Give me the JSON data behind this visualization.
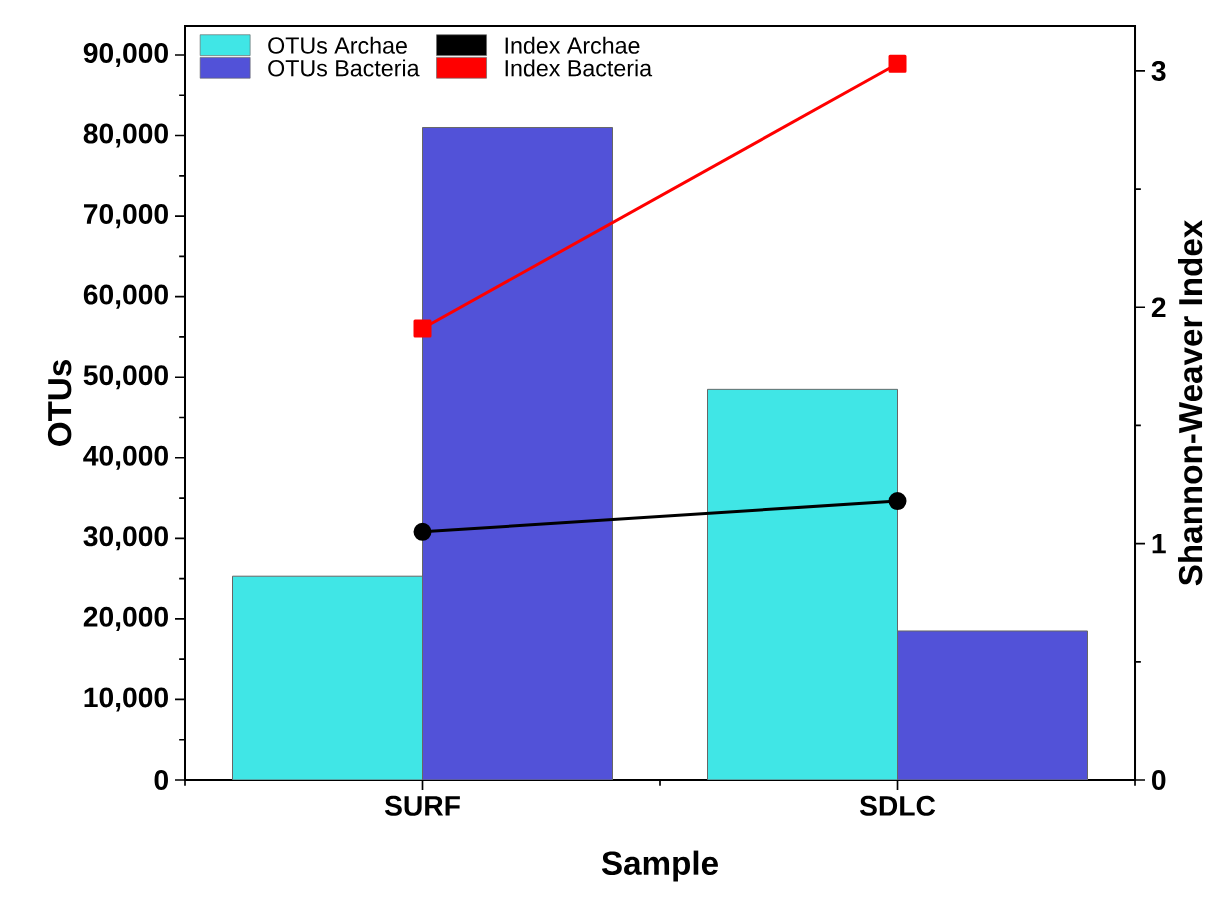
{
  "chart_data": {
    "type": "bar",
    "xlabel": "Sample",
    "ylabel": "OTUs",
    "y2label": "Shannon-Weaver Index",
    "categories": [
      "SURF",
      "SDLC"
    ],
    "series": [
      {
        "name": "OTUs Archae",
        "color": "#40e6e6",
        "values": [
          25300,
          48500
        ]
      },
      {
        "name": "OTUs Bacteria",
        "color": "#5252d8",
        "values": [
          81000,
          18500
        ]
      },
      {
        "name": "Index Archae",
        "type": "line",
        "axis": "y2",
        "color": "#000000",
        "marker": "circle",
        "line_style": "solid",
        "values": [
          1.05,
          1.18
        ]
      },
      {
        "name": "Index Bacteria",
        "type": "line",
        "axis": "y2",
        "color": "#ff0000",
        "marker": "square",
        "line_style": "solid",
        "values": [
          1.91,
          3.03
        ]
      }
    ],
    "ylim": [
      0,
      93600
    ],
    "yticks": [
      0,
      {
        "value": 10000,
        "label": "10,000"
      },
      {
        "value": 20000,
        "label": "20,000"
      },
      {
        "value": 30000,
        "label": "30,000"
      },
      {
        "value": 40000,
        "label": "40,000"
      },
      {
        "value": 50000,
        "label": "50,000"
      },
      {
        "value": 60000,
        "label": "60,000"
      },
      {
        "value": 70000,
        "label": "70,000"
      },
      {
        "value": 80000,
        "label": "80,000"
      },
      {
        "value": 90000,
        "label": "90,000"
      }
    ],
    "y2lim": [
      0,
      3.19
    ],
    "y2ticks": [
      0,
      1,
      2,
      3
    ],
    "legend": "top left",
    "grid": false
  }
}
